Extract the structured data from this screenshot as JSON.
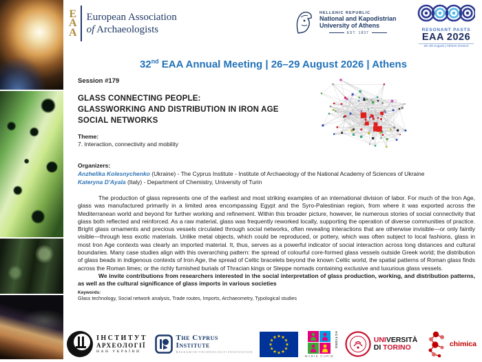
{
  "header": {
    "eaa_logo": {
      "letters": [
        "E",
        "A",
        "A"
      ],
      "name_line1": "European Association",
      "name_line2_of": "of",
      "name_line2_rest": " Archaeologists"
    },
    "uoa_logo": {
      "line1": "HELLENIC REPUBLIC",
      "line2": "National and Kapodistrian",
      "line3": "University of Athens",
      "line4": "EST. 1837"
    },
    "eaa2026_logo": {
      "tagline": "RESONANT PASTS",
      "title": "EAA 2026",
      "subtitle": "26–29 August | Athens Greece"
    }
  },
  "meeting_title": {
    "num": "32",
    "sup": "nd",
    "rest": " EAA Annual Meeting | 26–29 August 2026 | Athens"
  },
  "session": {
    "number_label": "Session #179",
    "title_lines": [
      "GLASS CONNECTING PEOPLE:",
      "GLASSWORKING AND DISTRIBUTION IN IRON AGE",
      "SOCIAL NETWORKS"
    ],
    "theme_label": "Theme:",
    "theme": "7. Interaction, connectivity and mobility",
    "organizers_label": "Organizers:",
    "organizers": [
      {
        "name": "Anzhelika Kolesnychenko",
        "affiliation": " (Ukraine) - The Cyprus Institute - Institute of Archaeology of the National Academy of Sciences of Ukraine"
      },
      {
        "name": "Kateryna D'Ayala",
        "affiliation": " (Italy) - Department of Chemistry, University of Turin"
      }
    ]
  },
  "abstract": {
    "paragraph": "The production of glass represents one of the earliest and most striking examples of an international division of labor. For much of the Iron Age, glass was manufactured primarily in a limited area encompassing Egypt and the Syro-Palestinian region, from where it was exported across the Mediterranean world and beyond for further working and refinement. Within this broader picture, however, lie numerous stories of social connectivity that glass both reflected and reinforced. As a raw material, glass was frequently reworked locally, supporting the operation of diverse communities of practice. Bright glass ornaments and precious vessels circulated through social networks, often revealing interactions that are otherwise invisible—or only faintly visible—through less exotic materials. Unlike metal objects, which could be reproduced, or pottery, which was often subject to local fashions, glass in most Iron Age contexts was clearly an imported material. It, thus, serves as a powerful indicator of social interaction across long distances and cultural boundaries. Many case studies align with this overarching pattern: the spread of colourful core-formed glass vessels outside Greek world; the distribution of glass beads in indigenous contexts of Iron Age, the spread of Celtic bracelets beyond the known Celtic world, the spatial patterns of Roman glass finds across the Roman limes; or the richly furnished burials of Thracian kings or Steppe nomads containing exclusive and luxurious glass vessels.",
    "invitation": "We invite contributions from researchers interested in the social interpretation of glass production, working, and distribution patterns, as well as the cultural significance of glass imports in various societies",
    "keywords_label": "Keywords:",
    "keywords": "Glass technology, Social network analysis, Trade routes, Imports, Archaeometry, Typological studies"
  },
  "footer_logos": {
    "ukraine_institute": {
      "line1": "ІНСТИТУТ",
      "line2": "АРХЕОЛОГІЇ",
      "line3": "НАН УКРАЇНИ"
    },
    "cyprus_institute": {
      "line1": "The Cyprus",
      "line2": "Institute",
      "line3": "RESEARCH•TECHNOLOGY•INNOVATION"
    },
    "marie_curie": {
      "label": "MARIE CURIE",
      "vertical": "ACTIONS"
    },
    "torino": {
      "uni_red": "UNI",
      "uni_black": "VERSITÀ",
      "di_black": "DI ",
      "torino_red": "TORINO"
    },
    "chimica": {
      "label": "chimica"
    }
  },
  "colors": {
    "title_blue": "#2272B9",
    "organizer_blue": "#2E74B5",
    "navy": "#1F3864",
    "eaa_gold": "#AD8C3B",
    "eu_blue": "#003399",
    "star_yellow": "#FFCC00",
    "torino_red": "#C8102E",
    "chimica_red": "#C00000",
    "resonant_blue": "#4472C4",
    "network_node_red": "#E02020"
  }
}
